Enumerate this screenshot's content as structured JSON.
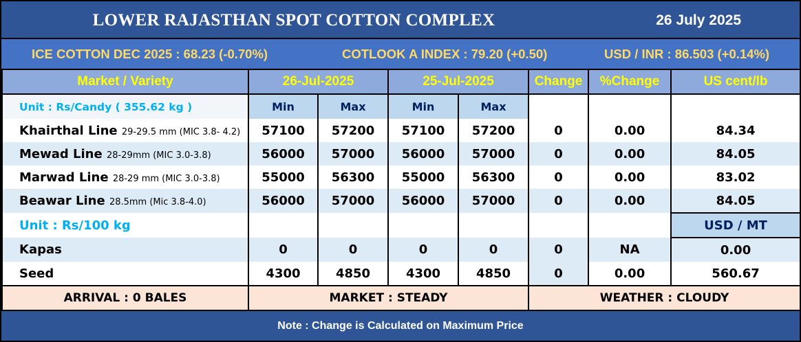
{
  "header": {
    "title": "LOWER RAJASTHAN SPOT COTTON COMPLEX",
    "date": "26 July 2025"
  },
  "ticker": {
    "ice": "ICE COTTON DEC 2025 : 68.23 (-0.70%)",
    "cotlook": "COTLOOK A INDEX : 79.20 (+0.50)",
    "usdinr": "USD / INR : 86.503 (+0.14%)"
  },
  "columns": {
    "market": "Market / Variety",
    "date1": "26-Jul-2025",
    "date2": "25-Jul-2025",
    "change": "Change",
    "pct": "%Change",
    "us": "US cent/lb",
    "min": "Min",
    "max": "Max"
  },
  "unit_candy": "Unit : Rs/Candy ( 355.62 kg )",
  "unit_100kg": "Unit : Rs/100 kg",
  "usd_mt": "USD / MT",
  "rows": [
    {
      "name": "Khairthal Line",
      "spec": "29-29.5 mm (MIC 3.8- 4.2)",
      "min1": "57100",
      "max1": "57200",
      "min2": "57100",
      "max2": "57200",
      "change": "0",
      "pct": "0.00",
      "us": "84.34"
    },
    {
      "name": "Mewad Line",
      "spec": "28-29mm (MIC 3.0-3.8)",
      "min1": "56000",
      "max1": "57000",
      "min2": "56000",
      "max2": "57000",
      "change": "0",
      "pct": "0.00",
      "us": "84.05"
    },
    {
      "name": "Marwad Line",
      "spec": "28-29 mm (MIC 3.0-3.8)",
      "min1": "55000",
      "max1": "56300",
      "min2": "55000",
      "max2": "56300",
      "change": "0",
      "pct": "0.00",
      "us": "83.02"
    },
    {
      "name": "Beawar Line",
      "spec": "28.5mm (Mic 3.8-4.0)",
      "min1": "56000",
      "max1": "57000",
      "min2": "56000",
      "max2": "57000",
      "change": "0",
      "pct": "0.00",
      "us": "84.05"
    }
  ],
  "rows2": [
    {
      "name": "Kapas",
      "min1": "0",
      "max1": "0",
      "min2": "0",
      "max2": "0",
      "change": "0",
      "pct": "NA",
      "us": "0.00"
    },
    {
      "name": "Seed",
      "min1": "4300",
      "max1": "4850",
      "min2": "4300",
      "max2": "4850",
      "change": "0",
      "pct": "0.00",
      "us": "560.67"
    }
  ],
  "footer": {
    "arrival": "ARRIVAL : 0 BALES",
    "market": "MARKET : STEADY",
    "weather": "WEATHER : CLOUDY"
  },
  "note": "Note : Change is Calculated on Maximum Price"
}
